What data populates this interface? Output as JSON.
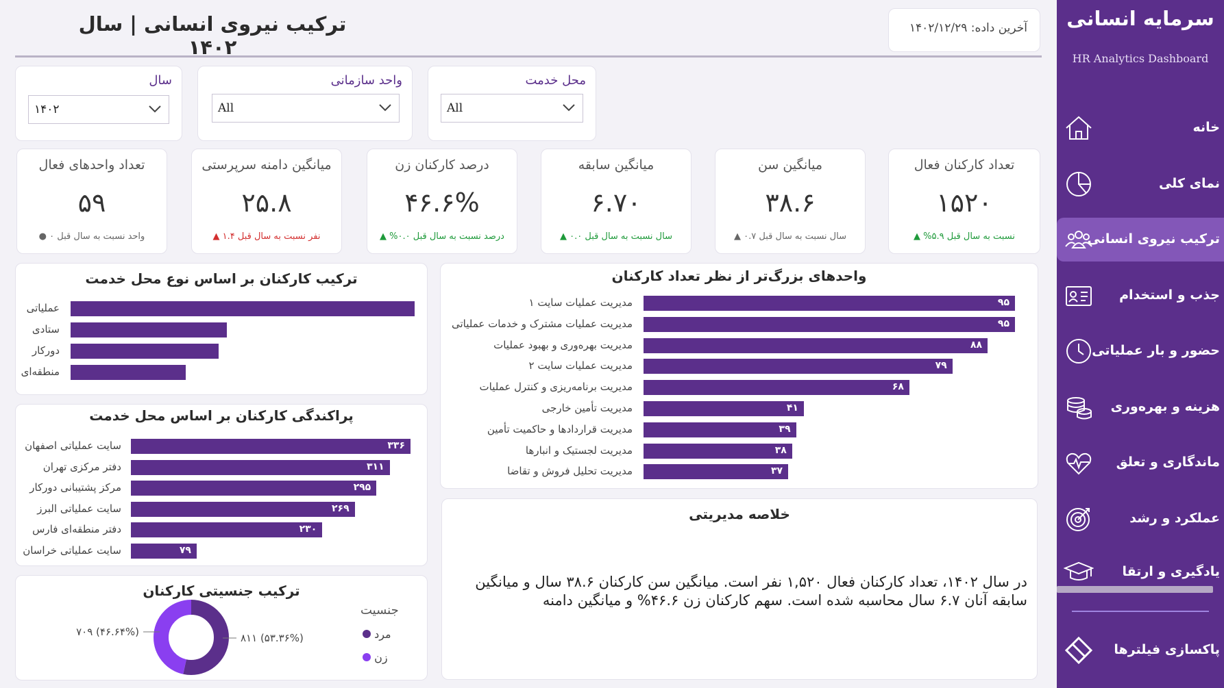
{
  "sidebar": {
    "title": "سرمایه انسانی",
    "subtitle": "HR Analytics Dashboard",
    "items": [
      {
        "label": "خانه",
        "icon": "home-icon"
      },
      {
        "label": "نمای کلی",
        "icon": "pie-chart-icon"
      },
      {
        "label": "ترکیب نیروی انسانی",
        "icon": "users-group-icon"
      },
      {
        "label": "جذب و استخدام",
        "icon": "id-card-icon"
      },
      {
        "label": "حضور و بار عملیاتی",
        "icon": "clock-icon"
      },
      {
        "label": "هزینه و بهره‌وری",
        "icon": "coins-icon"
      },
      {
        "label": "ماندگاری و تعلق",
        "icon": "heart-pulse-icon"
      },
      {
        "label": "عملکرد و رشد",
        "icon": "target-icon"
      },
      {
        "label": "یادگیری و ارتقا",
        "icon": "graduation-cap-icon"
      }
    ],
    "reset_label": "پاکسازی فیلترها"
  },
  "header": {
    "title": "ترکیب نیروی انسانی | سال ۱۴۰۲",
    "last_data": "آخرین داده: ۱۴۰۲/۱۲/۲۹"
  },
  "filters": {
    "year": {
      "label": "سال",
      "value": "۱۴۰۲"
    },
    "unit": {
      "label": "واحد سازمانی",
      "value": "All"
    },
    "location": {
      "label": "محل خدمت",
      "value": "All"
    }
  },
  "kpis": [
    {
      "title": "تعداد کارکنان فعال",
      "value": "۱۵۲۰",
      "note": "نسبت به سال قبل ۵.۹% ▲",
      "color": "#1e9a3a"
    },
    {
      "title": "میانگین سن",
      "value": "۳۸.۶",
      "note": "سال نسبت به سال قبل ۰.۷ ▲",
      "color": "#666666"
    },
    {
      "title": "میانگین سابقه",
      "value": "۶.۷۰",
      "note": "سال نسبت به سال قبل ۰.۰ ▲",
      "color": "#1e9a3a"
    },
    {
      "title": "درصد کارکنان زن",
      "value": "۴۶.۶%",
      "note": "درصد نسبت به سال قبل ۰.۰% ▲",
      "color": "#1e9a3a"
    },
    {
      "title": "میانگین دامنه سرپرستی",
      "value": "۲۵.۸",
      "note": "نفر نسبت به سال قبل ۱.۴ ▲",
      "color": "#d32f2f"
    },
    {
      "title": "تعداد واحدهای فعال",
      "value": "۵۹",
      "note": "واحد نسبت به سال قبل ۰ ●",
      "color": "#666666"
    }
  ],
  "chart_data": [
    {
      "type": "bar",
      "title": "واحدهای بزرگ‌تر از نظر تعداد کارکنان",
      "categories": [
        "مدیریت عملیات سایت ۱",
        "مدیریت عملیات مشترک و خدمات عملیاتی",
        "مدیریت بهره‌وری و بهبود عملیات",
        "مدیریت عملیات سایت ۲",
        "مدیریت برنامه‌ریزی و کنترل عملیات",
        "مدیریت تأمین خارجی",
        "مدیریت قراردادها و حاکمیت تأمین",
        "مدیریت لجستیک و انبارها",
        "مدیریت تحلیل فروش و تقاضا"
      ],
      "values": [
        95,
        95,
        88,
        79,
        68,
        41,
        39,
        38,
        37
      ],
      "labels": [
        "۹۵",
        "۹۵",
        "۸۸",
        "۷۹",
        "۶۸",
        "۴۱",
        "۳۹",
        "۳۸",
        "۳۷"
      ]
    },
    {
      "type": "bar",
      "title": "ترکیب کارکنان بر اساس نوع محل خدمت",
      "categories": [
        "عملیاتی",
        "ستادی",
        "دورکار",
        "منطقه‌ای"
      ],
      "values": [
        100,
        45.5,
        43,
        33.5
      ]
    },
    {
      "type": "bar",
      "title": "پراکندگی کارکنان بر اساس محل خدمت",
      "categories": [
        "سایت عملیاتی اصفهان",
        "دفتر مرکزی تهران",
        "مرکز پشتیبانی دورکار",
        "سایت عملیاتی البرز",
        "دفتر منطقه‌ای فارس",
        "سایت عملیاتی خراسان"
      ],
      "values": [
        336,
        311,
        295,
        269,
        230,
        79
      ],
      "labels": [
        "۳۳۶",
        "۳۱۱",
        "۲۹۵",
        "۲۶۹",
        "۲۳۰",
        "۷۹"
      ]
    },
    {
      "type": "pie",
      "title": "ترکیب جنسیتی کارکنان",
      "legend_title": "جنسیت",
      "categories": [
        "مرد",
        "زن"
      ],
      "values": [
        811,
        709
      ],
      "slice_labels": [
        "۸۱۱ (۵۳.۳۶%)",
        "۷۰۹ (۴۶.۶۴%)"
      ],
      "colors": [
        "#5b2f8b",
        "#8a3ff0"
      ]
    }
  ],
  "summary": {
    "title": "خلاصه مدیریتی",
    "text": "در سال ۱۴۰۲، تعداد کارکنان فعال ۱,۵۲۰ نفر است. میانگین سن کارکنان ۳۸.۶ سال و میانگین سابقه آنان ۶.۷ سال محاسبه شده است. سهم کارکنان زن ۴۶.۶% و میانگین دامنه"
  },
  "colors": {
    "accent": "#5b2f8b",
    "active_nav": "#8357b8"
  }
}
